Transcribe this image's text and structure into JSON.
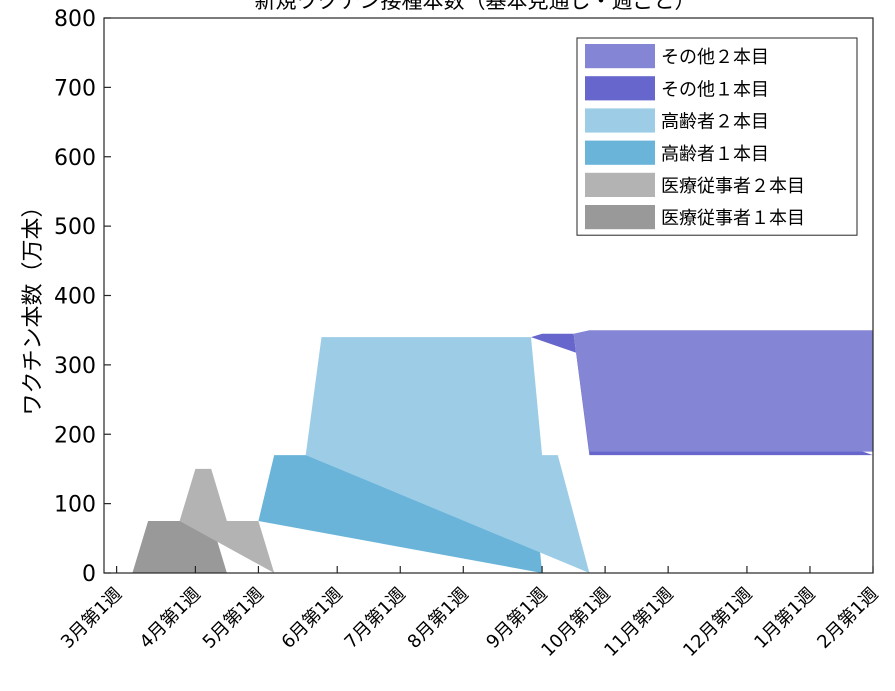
{
  "chart_data": {
    "type": "area",
    "title": "新規ワクチン接種本数（基本見通し・週ごと）",
    "ylabel": "ワクチン本数（万本）",
    "xlabel": "",
    "ylim": [
      0,
      800
    ],
    "yticks": [
      0,
      100,
      200,
      300,
      400,
      500,
      600,
      700,
      800
    ],
    "xlim": [
      -0.8,
      48
    ],
    "xticks": [
      {
        "x": 0,
        "label": "3月第1週"
      },
      {
        "x": 5,
        "label": "4月第1週"
      },
      {
        "x": 9,
        "label": "5月第1週"
      },
      {
        "x": 14,
        "label": "6月第1週"
      },
      {
        "x": 18,
        "label": "7月第1週"
      },
      {
        "x": 22,
        "label": "8月第1週"
      },
      {
        "x": 27,
        "label": "9月第1週"
      },
      {
        "x": 31,
        "label": "10月第1週"
      },
      {
        "x": 35,
        "label": "11月第1週"
      },
      {
        "x": 40,
        "label": "12月第1週"
      },
      {
        "x": 44,
        "label": "1月第1週"
      },
      {
        "x": 48,
        "label": "2月第1週"
      }
    ],
    "grid": false,
    "legend_position": "top-right",
    "series": [
      {
        "name": "医療従事者１本目",
        "color": "#999999",
        "points": [
          [
            1,
            0
          ],
          [
            2,
            75
          ],
          [
            6,
            75
          ],
          [
            7,
            0
          ]
        ]
      },
      {
        "name": "医療従事者２本目",
        "color": "#b3b3b3",
        "points": [
          [
            4,
            75
          ],
          [
            5,
            150
          ],
          [
            6,
            150
          ],
          [
            7,
            75
          ],
          [
            9,
            75
          ],
          [
            10,
            0
          ]
        ]
      },
      {
        "name": "高齢者１本目",
        "color": "#6ab4d9",
        "points": [
          [
            9,
            75
          ],
          [
            10,
            170
          ],
          [
            26.3,
            170
          ],
          [
            27,
            0
          ]
        ]
      },
      {
        "name": "高齢者２本目",
        "color": "#9dcde6",
        "points": [
          [
            12,
            170
          ],
          [
            13,
            340
          ],
          [
            26.3,
            340
          ],
          [
            27,
            170
          ],
          [
            28,
            170
          ],
          [
            30,
            0
          ]
        ]
      },
      {
        "name": "その他１本目",
        "color": "#6666cc",
        "points": [
          [
            26.3,
            340
          ],
          [
            27,
            345
          ],
          [
            29,
            345
          ],
          [
            30,
            170
          ],
          [
            48,
            170
          ]
        ]
      },
      {
        "name": "その他２本目",
        "color": "#8585d6",
        "points": [
          [
            29,
            345
          ],
          [
            30,
            350
          ],
          [
            48,
            350
          ],
          [
            48,
            175
          ],
          [
            30,
            175
          ]
        ]
      }
    ],
    "legend_order": [
      5,
      4,
      3,
      2,
      1,
      0
    ]
  }
}
